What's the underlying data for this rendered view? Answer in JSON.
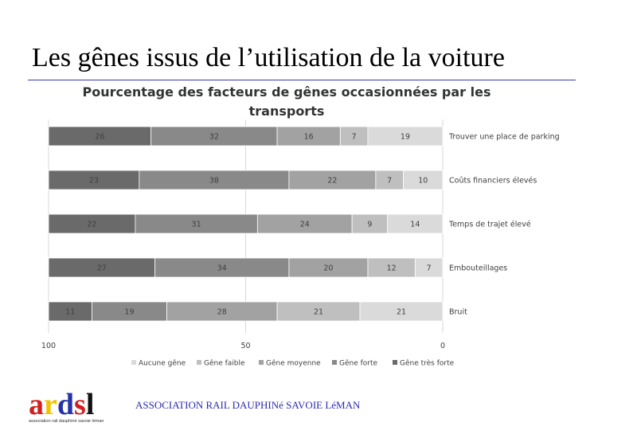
{
  "slide": {
    "title": "Les gênes issus de l’utilisation de la voiture"
  },
  "chart_data": {
    "type": "bar",
    "orientation": "horizontal-stacked-100",
    "title": "Pourcentage des facteurs de gênes occasionnées par les transports",
    "x_axis_reversed": true,
    "xlim": [
      0,
      100
    ],
    "x_ticks": [
      "100",
      "50",
      "0"
    ],
    "grid": true,
    "legend_position": "bottom",
    "categories": [
      "Trouver une place de parking",
      "Coûts financiers élevés",
      "Temps de trajet élevé",
      "Embouteillages",
      "Bruit"
    ],
    "series": [
      {
        "name": "Gêne très forte",
        "color": "#6a6a6a",
        "values": [
          26,
          23,
          22,
          27,
          11
        ]
      },
      {
        "name": "Gêne forte",
        "color": "#898989",
        "values": [
          32,
          38,
          31,
          34,
          19
        ]
      },
      {
        "name": "Gêne moyenne",
        "color": "#a2a2a2",
        "values": [
          16,
          22,
          24,
          20,
          28
        ]
      },
      {
        "name": "Gêne faible",
        "color": "#bfbfbf",
        "values": [
          7,
          7,
          9,
          12,
          21
        ]
      },
      {
        "name": "Aucune gêne",
        "color": "#dadada",
        "values": [
          19,
          10,
          14,
          7,
          21
        ]
      }
    ],
    "legend_order": [
      "Aucune gêne",
      "Gêne faible",
      "Gêne moyenne",
      "Gêne forte",
      "Gêne très forte"
    ]
  },
  "footer": {
    "logo_text": "ardsl",
    "logo_colors": [
      "#d21f1f",
      "#f2c300",
      "#2433a8",
      "#d21f1f",
      "#111111"
    ],
    "logo_subtitle": "association rail dauphiné savoie léman",
    "association_name": "ASSOCIATION RAIL DAUPHINé SAVOIE LéMAN"
  }
}
